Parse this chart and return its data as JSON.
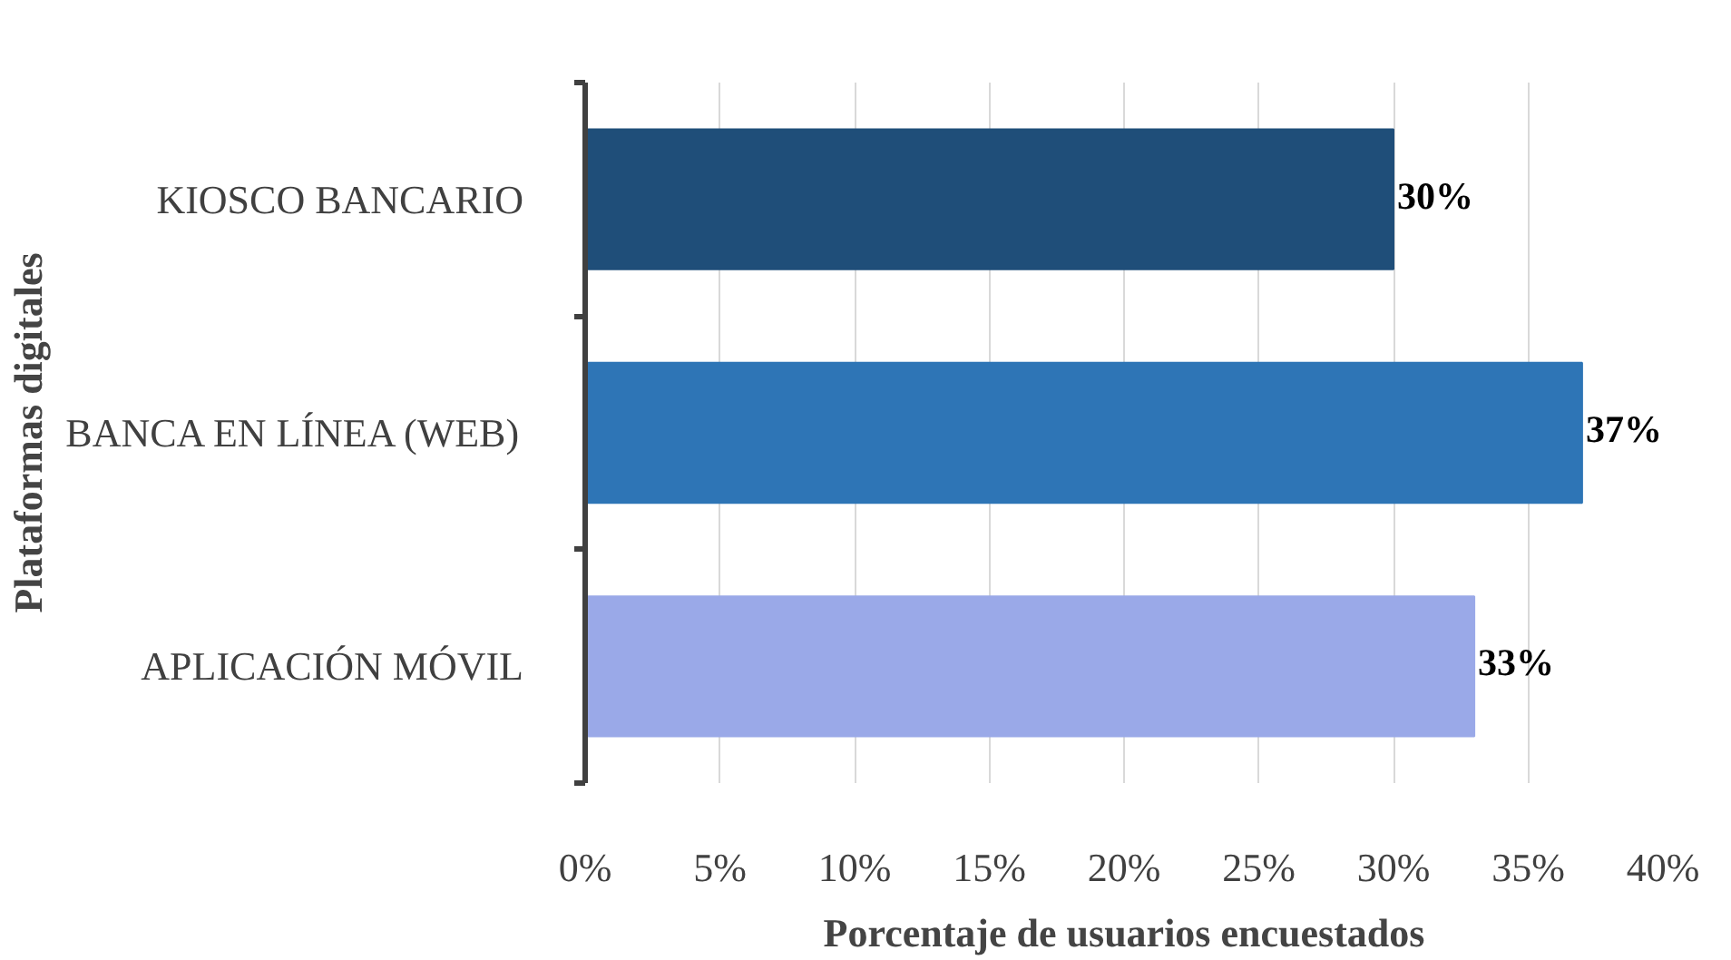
{
  "chart_data": {
    "type": "bar",
    "orientation": "horizontal",
    "xlabel": "Porcentaje de usuarios encuestados",
    "ylabel": "Plataformas digitales",
    "categories": [
      "KIOSCO BANCARIO",
      "BANCA EN LÍNEA (WEB)",
      "APLICACIÓN MÓVIL"
    ],
    "values": [
      30,
      37,
      33
    ],
    "colors": [
      "#1f4e79",
      "#2e75b6",
      "#9aa9e8"
    ],
    "value_labels": [
      "30%",
      "37%",
      "33%"
    ],
    "xlim": [
      0,
      40
    ],
    "xticks": [
      {
        "value": 0,
        "label": "0%"
      },
      {
        "value": 5,
        "label": "5%"
      },
      {
        "value": 10,
        "label": "10%"
      },
      {
        "value": 15,
        "label": "15%"
      },
      {
        "value": 20,
        "label": "20%"
      },
      {
        "value": 25,
        "label": "25%"
      },
      {
        "value": 30,
        "label": "30%"
      },
      {
        "value": 35,
        "label": "35%"
      },
      {
        "value": 40,
        "label": "40%"
      }
    ],
    "grid": "x"
  }
}
